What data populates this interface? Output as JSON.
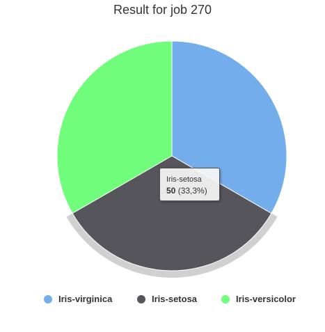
{
  "chart_data": {
    "type": "pie",
    "title": "Result for job 270",
    "categories": [
      "Iris-virginica",
      "Iris-setosa",
      "Iris-versicolor"
    ],
    "values": [
      50,
      50,
      50
    ],
    "percentages": [
      "33,3%",
      "33,3%",
      "33,3%"
    ],
    "colors": [
      "#74adeb",
      "#55555b",
      "#70fd7b"
    ],
    "legend_position": "bottom",
    "highlighted": "Iris-setosa"
  },
  "tooltip": {
    "name": "Iris-setosa",
    "value": "50",
    "percent": "(33,3%)"
  },
  "legend": [
    {
      "label": "Iris-virginica",
      "color": "#74adeb"
    },
    {
      "label": "Iris-setosa",
      "color": "#55555b"
    },
    {
      "label": "Iris-versicolor",
      "color": "#70fd7b"
    }
  ]
}
